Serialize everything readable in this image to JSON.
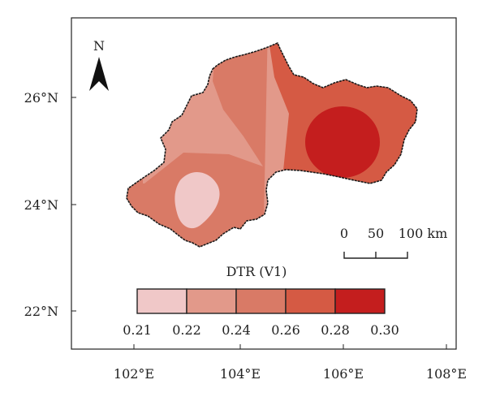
{
  "map": {
    "north_label": "N",
    "x_ticks": [
      "102°E",
      "104°E",
      "106°E",
      "108°E"
    ],
    "y_ticks": [
      "26°N",
      "24°N",
      "22°N"
    ],
    "scale_bar": {
      "labels": [
        "0",
        "50",
        "100 km"
      ]
    },
    "legend": {
      "title": "DTR (V1)",
      "bins": [
        {
          "color": "#f0c8c8"
        },
        {
          "color": "#e2998a"
        },
        {
          "color": "#d97a66"
        },
        {
          "color": "#d55a44"
        },
        {
          "color": "#c41e1e"
        }
      ],
      "labels": [
        "0.21",
        "0.22",
        "0.24",
        "0.26",
        "0.28",
        "0.30"
      ]
    }
  }
}
